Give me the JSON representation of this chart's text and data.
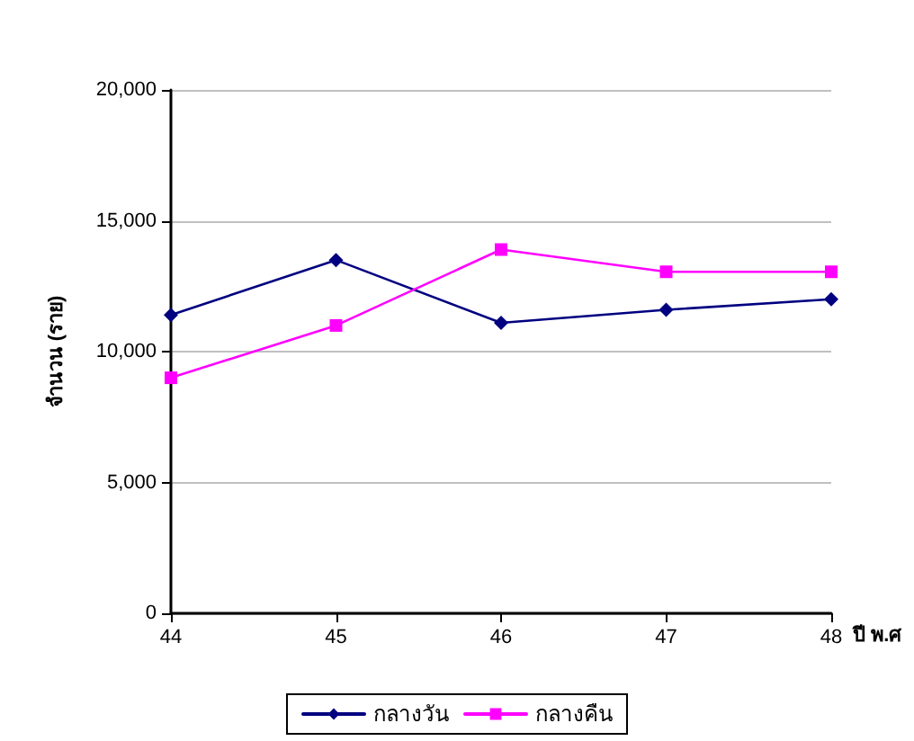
{
  "chart_data": {
    "type": "line",
    "xlabel": "ปี พ.ศ",
    "ylabel": "จำนวน (ราย)",
    "categories": [
      "44",
      "45",
      "46",
      "47",
      "48"
    ],
    "series": [
      {
        "name": "กลางวัน",
        "color": "#000080",
        "marker": "diamond",
        "values": [
          11400,
          13500,
          11100,
          11600,
          12000
        ]
      },
      {
        "name": "กลางคืน",
        "color": "#ff00ff",
        "marker": "square",
        "values": [
          9000,
          11000,
          13900,
          13050,
          13050
        ]
      }
    ],
    "ylim": [
      0,
      20000
    ],
    "yticks": [
      0,
      {
        "value": 5000,
        "label": "5,000"
      },
      {
        "value": 10000,
        "label": "10,000"
      },
      {
        "value": 15000,
        "label": "15,000"
      },
      {
        "value": 20000,
        "label": "20,000"
      }
    ],
    "grid": "y",
    "legend": "bottom",
    "line_style": "solid"
  }
}
